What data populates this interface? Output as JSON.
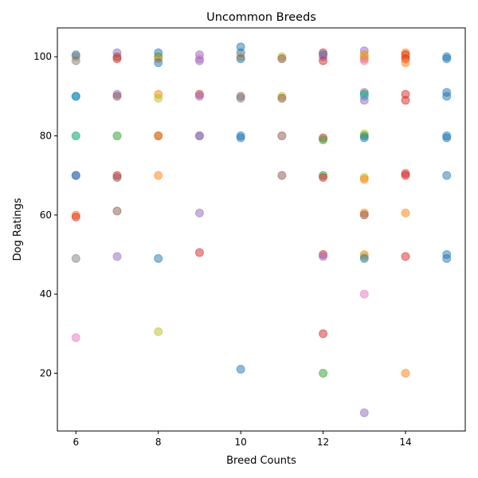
{
  "chart_data": {
    "type": "scatter",
    "title": "Uncommon Breeds",
    "xlabel": "Breed Counts",
    "ylabel": "Dog Ratings",
    "xlim": [
      5.55,
      15.45
    ],
    "ylim": [
      5.4,
      107.3
    ],
    "xticks": [
      6,
      8,
      10,
      12,
      14
    ],
    "yticks": [
      20,
      40,
      60,
      80,
      100
    ],
    "grid": false,
    "palette": [
      "#1f77b4",
      "#ff7f0e",
      "#2ca02c",
      "#d62728",
      "#9467bd",
      "#8c564b",
      "#e377c2",
      "#7f7f7f",
      "#bcbd22",
      "#17becf"
    ],
    "points": [
      {
        "x": 6,
        "y": 100,
        "c": 1
      },
      {
        "x": 6,
        "y": 99,
        "c": 7
      },
      {
        "x": 6,
        "y": 100.5,
        "c": 0
      },
      {
        "x": 6,
        "y": 90,
        "c": 9
      },
      {
        "x": 6,
        "y": 90,
        "c": 0
      },
      {
        "x": 6,
        "y": 80,
        "c": 8
      },
      {
        "x": 6,
        "y": 80,
        "c": 9
      },
      {
        "x": 6,
        "y": 70,
        "c": 4
      },
      {
        "x": 6,
        "y": 70,
        "c": 0
      },
      {
        "x": 6,
        "y": 60,
        "c": 1
      },
      {
        "x": 6,
        "y": 59.5,
        "c": 3
      },
      {
        "x": 6,
        "y": 49,
        "c": 7
      },
      {
        "x": 6,
        "y": 29,
        "c": 6
      },
      {
        "x": 7,
        "y": 101,
        "c": 4
      },
      {
        "x": 7,
        "y": 100,
        "c": 5
      },
      {
        "x": 7,
        "y": 99.5,
        "c": 3
      },
      {
        "x": 7,
        "y": 90.5,
        "c": 4
      },
      {
        "x": 7,
        "y": 90,
        "c": 5
      },
      {
        "x": 7,
        "y": 80,
        "c": 2
      },
      {
        "x": 7,
        "y": 70,
        "c": 3
      },
      {
        "x": 7,
        "y": 69.5,
        "c": 5
      },
      {
        "x": 7,
        "y": 61,
        "c": 5
      },
      {
        "x": 7,
        "y": 49.5,
        "c": 4
      },
      {
        "x": 8,
        "y": 101,
        "c": 0
      },
      {
        "x": 8,
        "y": 100,
        "c": 2
      },
      {
        "x": 8,
        "y": 99.5,
        "c": 1
      },
      {
        "x": 8,
        "y": 98.5,
        "c": 0
      },
      {
        "x": 8,
        "y": 90.5,
        "c": 1
      },
      {
        "x": 8,
        "y": 89.5,
        "c": 8
      },
      {
        "x": 8,
        "y": 80,
        "c": 5
      },
      {
        "x": 8,
        "y": 80,
        "c": 1
      },
      {
        "x": 8,
        "y": 70,
        "c": 1
      },
      {
        "x": 8,
        "y": 49,
        "c": 0
      },
      {
        "x": 8,
        "y": 30.5,
        "c": 8
      },
      {
        "x": 9,
        "y": 100.5,
        "c": 4
      },
      {
        "x": 9,
        "y": 99.5,
        "c": 6
      },
      {
        "x": 9,
        "y": 99,
        "c": 4
      },
      {
        "x": 9,
        "y": 90.5,
        "c": 3
      },
      {
        "x": 9,
        "y": 90,
        "c": 4
      },
      {
        "x": 9,
        "y": 80,
        "c": 7
      },
      {
        "x": 9,
        "y": 80,
        "c": 4
      },
      {
        "x": 9,
        "y": 60.5,
        "c": 4
      },
      {
        "x": 9,
        "y": 50.5,
        "c": 3
      },
      {
        "x": 10,
        "y": 102.5,
        "c": 0
      },
      {
        "x": 10,
        "y": 101,
        "c": 0
      },
      {
        "x": 10,
        "y": 100,
        "c": 1
      },
      {
        "x": 10,
        "y": 99.5,
        "c": 0
      },
      {
        "x": 10,
        "y": 90,
        "c": 5
      },
      {
        "x": 10,
        "y": 89.5,
        "c": 7
      },
      {
        "x": 10,
        "y": 80,
        "c": 0
      },
      {
        "x": 10,
        "y": 79.5,
        "c": 0
      },
      {
        "x": 10,
        "y": 21,
        "c": 0
      },
      {
        "x": 11,
        "y": 100,
        "c": 8
      },
      {
        "x": 11,
        "y": 99.5,
        "c": 5
      },
      {
        "x": 11,
        "y": 90,
        "c": 8
      },
      {
        "x": 11,
        "y": 89.5,
        "c": 5
      },
      {
        "x": 11,
        "y": 80,
        "c": 5
      },
      {
        "x": 11,
        "y": 70,
        "c": 5
      },
      {
        "x": 12,
        "y": 101,
        "c": 3
      },
      {
        "x": 12,
        "y": 100.5,
        "c": 0
      },
      {
        "x": 12,
        "y": 100,
        "c": 4
      },
      {
        "x": 12,
        "y": 99,
        "c": 3
      },
      {
        "x": 12,
        "y": 79.5,
        "c": 3
      },
      {
        "x": 12,
        "y": 79,
        "c": 2
      },
      {
        "x": 12,
        "y": 70,
        "c": 2
      },
      {
        "x": 12,
        "y": 69.5,
        "c": 3
      },
      {
        "x": 12,
        "y": 50,
        "c": 3
      },
      {
        "x": 12,
        "y": 49.5,
        "c": 4
      },
      {
        "x": 12,
        "y": 30,
        "c": 3
      },
      {
        "x": 12,
        "y": 20,
        "c": 2
      },
      {
        "x": 13,
        "y": 101.5,
        "c": 4
      },
      {
        "x": 13,
        "y": 100.5,
        "c": 1
      },
      {
        "x": 13,
        "y": 100,
        "c": 8
      },
      {
        "x": 13,
        "y": 99.5,
        "c": 1
      },
      {
        "x": 13,
        "y": 99,
        "c": 6
      },
      {
        "x": 13,
        "y": 91,
        "c": 4
      },
      {
        "x": 13,
        "y": 90.5,
        "c": 2
      },
      {
        "x": 13,
        "y": 90,
        "c": 9
      },
      {
        "x": 13,
        "y": 89,
        "c": 4
      },
      {
        "x": 13,
        "y": 80.5,
        "c": 8
      },
      {
        "x": 13,
        "y": 80,
        "c": 2
      },
      {
        "x": 13,
        "y": 79.5,
        "c": 0
      },
      {
        "x": 13,
        "y": 69.5,
        "c": 8
      },
      {
        "x": 13,
        "y": 69,
        "c": 1
      },
      {
        "x": 13,
        "y": 60.5,
        "c": 1
      },
      {
        "x": 13,
        "y": 60,
        "c": 5
      },
      {
        "x": 13,
        "y": 50,
        "c": 1
      },
      {
        "x": 13,
        "y": 49.5,
        "c": 8
      },
      {
        "x": 13,
        "y": 49,
        "c": 0
      },
      {
        "x": 13,
        "y": 40,
        "c": 6
      },
      {
        "x": 13,
        "y": 10,
        "c": 4
      },
      {
        "x": 14,
        "y": 101,
        "c": 1
      },
      {
        "x": 14,
        "y": 100.5,
        "c": 3
      },
      {
        "x": 14,
        "y": 100,
        "c": 1
      },
      {
        "x": 14,
        "y": 99.5,
        "c": 3
      },
      {
        "x": 14,
        "y": 98.5,
        "c": 1
      },
      {
        "x": 14,
        "y": 90.5,
        "c": 3
      },
      {
        "x": 14,
        "y": 89,
        "c": 3
      },
      {
        "x": 14,
        "y": 70.5,
        "c": 3
      },
      {
        "x": 14,
        "y": 70,
        "c": 3
      },
      {
        "x": 14,
        "y": 60.5,
        "c": 1
      },
      {
        "x": 14,
        "y": 49.5,
        "c": 3
      },
      {
        "x": 14,
        "y": 20,
        "c": 1
      },
      {
        "x": 15,
        "y": 100,
        "c": 0
      },
      {
        "x": 15,
        "y": 99.5,
        "c": 0
      },
      {
        "x": 15,
        "y": 91,
        "c": 0
      },
      {
        "x": 15,
        "y": 90,
        "c": 0
      },
      {
        "x": 15,
        "y": 80,
        "c": 0
      },
      {
        "x": 15,
        "y": 79.5,
        "c": 0
      },
      {
        "x": 15,
        "y": 70,
        "c": 0
      },
      {
        "x": 15,
        "y": 50,
        "c": 0
      },
      {
        "x": 15,
        "y": 49,
        "c": 0
      }
    ]
  }
}
